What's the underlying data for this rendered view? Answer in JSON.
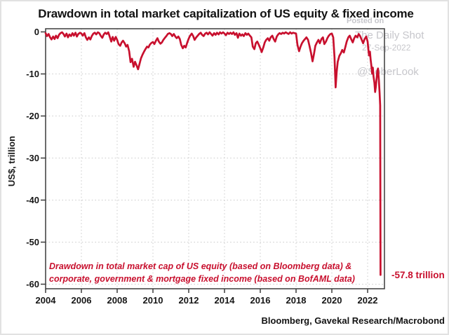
{
  "title": "Drawdown in total market capitalization of US equity & fixed income",
  "watermark": {
    "posted_on": "Posted on",
    "site": "The Daily Shot",
    "date": "27-Sep-2022",
    "handle": "@SoberLook"
  },
  "y_axis": {
    "label": "US$, trillion",
    "ticks": [
      0,
      -10,
      -20,
      -30,
      -40,
      -50,
      -60
    ]
  },
  "x_axis": {
    "ticks": [
      2004,
      2006,
      2008,
      2010,
      2012,
      2014,
      2016,
      2018,
      2020,
      2022
    ]
  },
  "annotation": {
    "line1": "Drawdown in total market cap of US equity (based on Bloomberg data) &",
    "line2": "corporate, government & mortgage fixed income (based on BofAML data)"
  },
  "end_label": "-57.8 trillion",
  "source": "Bloomberg, Gavekal Research/Macrobond",
  "colors": {
    "line_red": "#c8102e",
    "annotation_red": "#c8102e",
    "watermark_gray": "#c6c6cb",
    "grid_gray": "#c9c9c9",
    "axis_dark": "#3c3c3c",
    "text_black": "#121212"
  },
  "chart_data": {
    "type": "line",
    "title": "Drawdown in total market capitalization of US equity & fixed income",
    "xlabel": "",
    "ylabel": "US$, trillion",
    "x_range": [
      2004,
      2022.95
    ],
    "ylim": [
      -61.2,
      0.8
    ],
    "grid": true,
    "legend": "none",
    "y_ticks": [
      0,
      -10,
      -20,
      -30,
      -40,
      -50,
      -60
    ],
    "x_ticks": [
      2004,
      2006,
      2008,
      2010,
      2012,
      2014,
      2016,
      2018,
      2020,
      2022
    ],
    "annotations": [
      {
        "text": "-57.8 trillion",
        "x": 2022.72,
        "y": -57.8
      }
    ],
    "series": [
      {
        "name": "Drawdown in total market cap of US equity & fixed income (US$ trillion)",
        "points": [
          [
            2004.0,
            -0.3
          ],
          [
            2004.08,
            -1.0
          ],
          [
            2004.17,
            -0.5
          ],
          [
            2004.25,
            -1.3
          ],
          [
            2004.33,
            -1.8
          ],
          [
            2004.42,
            -1.1
          ],
          [
            2004.5,
            -1.7
          ],
          [
            2004.58,
            -0.9
          ],
          [
            2004.67,
            -1.5
          ],
          [
            2004.75,
            -0.7
          ],
          [
            2004.83,
            -0.3
          ],
          [
            2004.92,
            -0.1
          ],
          [
            2005.0,
            -0.5
          ],
          [
            2005.08,
            -1.1
          ],
          [
            2005.17,
            -0.4
          ],
          [
            2005.25,
            -1.3
          ],
          [
            2005.33,
            -0.6
          ],
          [
            2005.42,
            -1.0
          ],
          [
            2005.5,
            -0.3
          ],
          [
            2005.58,
            -0.9
          ],
          [
            2005.67,
            -0.2
          ],
          [
            2005.75,
            -1.1
          ],
          [
            2005.83,
            -0.5
          ],
          [
            2005.92,
            -0.2
          ],
          [
            2006.0,
            -0.4
          ],
          [
            2006.08,
            -0.9
          ],
          [
            2006.17,
            -0.3
          ],
          [
            2006.25,
            -1.3
          ],
          [
            2006.33,
            -1.9
          ],
          [
            2006.42,
            -1.3
          ],
          [
            2006.5,
            -1.8
          ],
          [
            2006.58,
            -1.0
          ],
          [
            2006.67,
            -0.4
          ],
          [
            2006.75,
            -0.2
          ],
          [
            2006.83,
            -0.6
          ],
          [
            2006.92,
            -0.1
          ],
          [
            2007.0,
            -0.3
          ],
          [
            2007.08,
            -0.9
          ],
          [
            2007.17,
            -1.4
          ],
          [
            2007.25,
            -0.6
          ],
          [
            2007.33,
            -0.2
          ],
          [
            2007.42,
            -0.5
          ],
          [
            2007.5,
            -0.1
          ],
          [
            2007.58,
            -1.1
          ],
          [
            2007.67,
            -2.3
          ],
          [
            2007.75,
            -1.2
          ],
          [
            2007.83,
            -2.1
          ],
          [
            2007.92,
            -1.2
          ],
          [
            2008.0,
            -1.9
          ],
          [
            2008.08,
            -2.9
          ],
          [
            2008.17,
            -3.3
          ],
          [
            2008.25,
            -2.5
          ],
          [
            2008.33,
            -2.1
          ],
          [
            2008.42,
            -2.7
          ],
          [
            2008.5,
            -3.5
          ],
          [
            2008.58,
            -3.1
          ],
          [
            2008.67,
            -4.6
          ],
          [
            2008.75,
            -7.2
          ],
          [
            2008.83,
            -6.4
          ],
          [
            2008.92,
            -8.3
          ],
          [
            2009.0,
            -7.1
          ],
          [
            2009.08,
            -7.9
          ],
          [
            2009.17,
            -8.9
          ],
          [
            2009.25,
            -7.6
          ],
          [
            2009.33,
            -6.3
          ],
          [
            2009.42,
            -5.4
          ],
          [
            2009.5,
            -4.7
          ],
          [
            2009.58,
            -4.1
          ],
          [
            2009.67,
            -3.5
          ],
          [
            2009.75,
            -3.7
          ],
          [
            2009.83,
            -3.0
          ],
          [
            2009.92,
            -2.6
          ],
          [
            2010.0,
            -2.4
          ],
          [
            2010.08,
            -2.9
          ],
          [
            2010.17,
            -2.1
          ],
          [
            2010.25,
            -1.5
          ],
          [
            2010.33,
            -2.3
          ],
          [
            2010.42,
            -2.8
          ],
          [
            2010.5,
            -2.5
          ],
          [
            2010.58,
            -1.9
          ],
          [
            2010.67,
            -1.4
          ],
          [
            2010.75,
            -1.0
          ],
          [
            2010.83,
            -0.5
          ],
          [
            2010.92,
            -0.3
          ],
          [
            2011.0,
            -0.5
          ],
          [
            2011.08,
            -1.0
          ],
          [
            2011.17,
            -0.5
          ],
          [
            2011.25,
            -1.1
          ],
          [
            2011.33,
            -1.5
          ],
          [
            2011.42,
            -1.1
          ],
          [
            2011.5,
            -1.7
          ],
          [
            2011.58,
            -3.1
          ],
          [
            2011.67,
            -3.9
          ],
          [
            2011.75,
            -3.3
          ],
          [
            2011.83,
            -3.7
          ],
          [
            2011.92,
            -2.5
          ],
          [
            2012.0,
            -1.6
          ],
          [
            2012.08,
            -0.9
          ],
          [
            2012.17,
            -0.4
          ],
          [
            2012.25,
            -1.0
          ],
          [
            2012.33,
            -1.9
          ],
          [
            2012.42,
            -1.3
          ],
          [
            2012.5,
            -0.9
          ],
          [
            2012.58,
            -0.5
          ],
          [
            2012.67,
            -0.2
          ],
          [
            2012.75,
            -0.7
          ],
          [
            2012.83,
            -1.0
          ],
          [
            2012.92,
            -0.4
          ],
          [
            2013.0,
            -0.2
          ],
          [
            2013.08,
            -0.6
          ],
          [
            2013.17,
            -0.1
          ],
          [
            2013.25,
            -0.5
          ],
          [
            2013.33,
            -0.9
          ],
          [
            2013.42,
            -0.3
          ],
          [
            2013.5,
            -0.7
          ],
          [
            2013.58,
            -0.2
          ],
          [
            2013.67,
            -0.6
          ],
          [
            2013.75,
            -0.1
          ],
          [
            2013.83,
            -0.4
          ],
          [
            2013.92,
            -0.1
          ],
          [
            2014.0,
            -0.4
          ],
          [
            2014.08,
            -0.8
          ],
          [
            2014.17,
            -0.2
          ],
          [
            2014.25,
            -0.5
          ],
          [
            2014.33,
            -0.2
          ],
          [
            2014.42,
            -0.5
          ],
          [
            2014.5,
            -0.1
          ],
          [
            2014.58,
            -0.7
          ],
          [
            2014.67,
            -0.3
          ],
          [
            2014.75,
            -1.4
          ],
          [
            2014.83,
            -0.4
          ],
          [
            2014.92,
            -0.9
          ],
          [
            2015.0,
            -0.6
          ],
          [
            2015.08,
            -1.0
          ],
          [
            2015.17,
            -0.3
          ],
          [
            2015.25,
            -0.7
          ],
          [
            2015.33,
            -0.4
          ],
          [
            2015.42,
            -0.9
          ],
          [
            2015.5,
            -1.3
          ],
          [
            2015.58,
            -3.5
          ],
          [
            2015.67,
            -4.1
          ],
          [
            2015.75,
            -2.7
          ],
          [
            2015.83,
            -2.3
          ],
          [
            2015.92,
            -3.1
          ],
          [
            2016.0,
            -3.9
          ],
          [
            2016.08,
            -4.8
          ],
          [
            2016.17,
            -3.7
          ],
          [
            2016.25,
            -2.5
          ],
          [
            2016.33,
            -1.9
          ],
          [
            2016.42,
            -1.5
          ],
          [
            2016.5,
            -2.1
          ],
          [
            2016.58,
            -1.3
          ],
          [
            2016.67,
            -0.9
          ],
          [
            2016.75,
            -1.7
          ],
          [
            2016.83,
            -2.3
          ],
          [
            2016.92,
            -1.1
          ],
          [
            2017.0,
            -0.6
          ],
          [
            2017.08,
            -0.3
          ],
          [
            2017.17,
            -0.5
          ],
          [
            2017.25,
            -0.2
          ],
          [
            2017.33,
            -0.4
          ],
          [
            2017.42,
            -0.1
          ],
          [
            2017.5,
            -0.3
          ],
          [
            2017.58,
            -0.5
          ],
          [
            2017.67,
            -0.1
          ],
          [
            2017.75,
            -0.4
          ],
          [
            2017.83,
            -0.2
          ],
          [
            2017.92,
            -0.3
          ],
          [
            2018.0,
            -0.4
          ],
          [
            2018.08,
            -3.1
          ],
          [
            2018.17,
            -4.6
          ],
          [
            2018.25,
            -3.5
          ],
          [
            2018.33,
            -2.7
          ],
          [
            2018.42,
            -2.1
          ],
          [
            2018.5,
            -1.7
          ],
          [
            2018.58,
            -1.3
          ],
          [
            2018.67,
            -1.9
          ],
          [
            2018.75,
            -3.3
          ],
          [
            2018.83,
            -4.9
          ],
          [
            2018.92,
            -7.0
          ],
          [
            2019.0,
            -5.3
          ],
          [
            2019.08,
            -3.3
          ],
          [
            2019.17,
            -2.5
          ],
          [
            2019.25,
            -1.9
          ],
          [
            2019.33,
            -2.7
          ],
          [
            2019.42,
            -1.7
          ],
          [
            2019.5,
            -1.3
          ],
          [
            2019.58,
            -2.9
          ],
          [
            2019.67,
            -2.3
          ],
          [
            2019.75,
            -1.5
          ],
          [
            2019.83,
            -0.9
          ],
          [
            2019.92,
            -0.5
          ],
          [
            2020.0,
            -0.4
          ],
          [
            2020.08,
            -1.3
          ],
          [
            2020.15,
            -6.0
          ],
          [
            2020.21,
            -13.2
          ],
          [
            2020.27,
            -9.5
          ],
          [
            2020.33,
            -7.1
          ],
          [
            2020.42,
            -5.7
          ],
          [
            2020.5,
            -5.1
          ],
          [
            2020.58,
            -4.3
          ],
          [
            2020.67,
            -4.9
          ],
          [
            2020.75,
            -3.7
          ],
          [
            2020.83,
            -2.3
          ],
          [
            2020.92,
            -1.3
          ],
          [
            2021.0,
            -0.9
          ],
          [
            2021.08,
            -1.7
          ],
          [
            2021.17,
            -2.5
          ],
          [
            2021.25,
            -1.5
          ],
          [
            2021.33,
            -0.9
          ],
          [
            2021.42,
            -1.3
          ],
          [
            2021.5,
            -0.5
          ],
          [
            2021.58,
            -1.0
          ],
          [
            2021.67,
            -1.9
          ],
          [
            2021.75,
            -2.7
          ],
          [
            2021.83,
            -1.7
          ],
          [
            2021.92,
            -1.1
          ],
          [
            2022.0,
            -2.3
          ],
          [
            2022.04,
            -4.1
          ],
          [
            2022.08,
            -5.6
          ],
          [
            2022.13,
            -4.7
          ],
          [
            2022.17,
            -6.6
          ],
          [
            2022.21,
            -8.1
          ],
          [
            2022.25,
            -9.9
          ],
          [
            2022.29,
            -8.5
          ],
          [
            2022.33,
            -10.6
          ],
          [
            2022.38,
            -12.1
          ],
          [
            2022.42,
            -14.3
          ],
          [
            2022.46,
            -13.1
          ],
          [
            2022.5,
            -11.1
          ],
          [
            2022.54,
            -9.3
          ],
          [
            2022.58,
            -8.7
          ],
          [
            2022.63,
            -11.6
          ],
          [
            2022.67,
            -14.6
          ],
          [
            2022.7,
            -17.5
          ],
          [
            2022.72,
            -57.8
          ]
        ]
      }
    ]
  }
}
